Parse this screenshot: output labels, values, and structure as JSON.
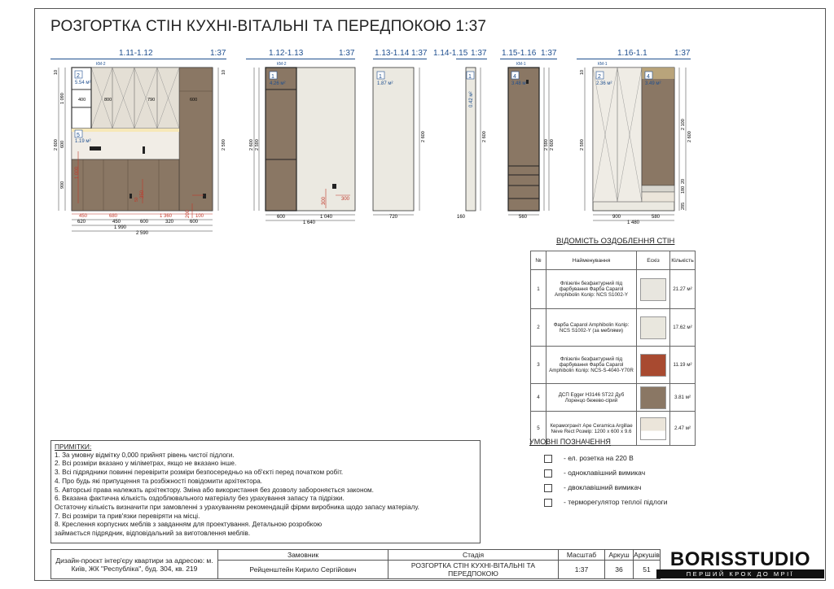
{
  "title": "РОЗГОРТКА СТІН КУХНІ-ВІТАЛЬНІ ТА ПЕРЕДПОКОЮ 1:37",
  "elevations": [
    {
      "label": "1.11-1.12",
      "scale": "1:37"
    },
    {
      "label": "1.12-1.13",
      "scale": "1:37"
    },
    {
      "label": "1.13-1.14",
      "scale": "1:37"
    },
    {
      "label": "1.14-1.15",
      "scale": "1:37"
    },
    {
      "label": "1.15-1.16",
      "scale": "1:37"
    },
    {
      "label": "1.16-1.1",
      "scale": "1:37"
    }
  ],
  "drawing_text": {
    "km2a": "КМ-2",
    "km2b": "КМ-2",
    "km1a": "КМ-1",
    "km1b": "КМ-1",
    "e1_area2": "5.54 м²",
    "e1_area5": "1.19 м²",
    "e2_area1": "4.26 м²",
    "e3_area1": "1.87 м²",
    "e4_area1": "0.42 м²",
    "e5_area4": "3.48 м²",
    "e6_area2": "2.36 м²",
    "e6_area4": "3.49 м²",
    "tag1": "1",
    "tag2": "2",
    "tag3": "3",
    "tag4": "4",
    "tag5": "5",
    "d400": "400",
    "d800": "800",
    "d790": "790",
    "d600": "600",
    "d10": "10",
    "d1090": "1 090",
    "d2600": "2 600",
    "d600v": "600",
    "d900": "900",
    "d2590": "2 590",
    "d450": "450",
    "d680": "680",
    "d1360": "1 360",
    "d200": "200",
    "d100": "100",
    "d620": "620",
    "d450b": "450",
    "d600b": "600",
    "d320": "320",
    "d600c": "600",
    "d1990": "1 990",
    "d2590b": "2 590",
    "d1000": "1 000",
    "d350": "350",
    "d50": "50",
    "e2_600": "600",
    "e2_1040": "1 040",
    "e2_1640": "1 640",
    "e2_300a": "300",
    "e2_300b": "300",
    "e3_720": "720",
    "e4_160": "160",
    "e5_560": "560",
    "e6_900": "900",
    "e6_580": "580",
    "e6_1480": "1 480",
    "e6_2100": "2 100",
    "e6_20": "20",
    "e6_180": "180",
    "e6_285": "285",
    "e6_2590": "2 590",
    "e6_2600": "2 600",
    "e5_2590": "2 590",
    "e5_2600": "2 600"
  },
  "notes": {
    "heading": "ПРИМІТКИ:",
    "lines": [
      "1. За умовну відмітку 0,000 прийнят рівень чистої підлоги.",
      "2. Всі розміри вказано у міліметрах, якщо не вказано інше.",
      "3. Всі підрядники повинні перевірити розміри безпосередньо на об'єкті перед початком робіт.",
      "4. Про будь які припущення та розбіжності повідомити архітектора.",
      "5. Авторські права належать архітектору. Зміна або використання без дозволу забороняється законом.",
      "6. Вказана фактична кількість оздоблювального матеріалу без урахування запасу та підрізки.",
      "Остаточну кількість визначити при замовленні з урахуванням рекомендацій фірми виробника щодо запасу матеріалу.",
      "7. Всі розміри та прив'язки перевіряти на місці.",
      "8. Креслення корпусних меблів з завданням для проектування. Детальною розробкою",
      "займається підрядник, відповідальний за виготовлення меблів."
    ]
  },
  "finishes": {
    "title": "ВІДОМІСТЬ ОЗДОБЛЕННЯ СТІН",
    "headers": {
      "no": "№",
      "name": "Найменування",
      "sketch": "Ескіз",
      "qty": "Кількість"
    },
    "rows": [
      {
        "no": "1",
        "name": "Флізелін безфактурний під фарбування Фарба Caparol Amphibolin Колір: NCS S1002-Y",
        "qty": "21.27 м²",
        "color": "#e8e6df"
      },
      {
        "no": "2",
        "name": "Фарба Caparol Amphibolin Колір: NCS S1002-Y (за меблями)",
        "qty": "17.62 м²",
        "color": "#e9e7de"
      },
      {
        "no": "3",
        "name": "Флізелін безфактурний під фарбування Фарба Caparol Amphibolin Колір: NCS-S-4040-Y70R",
        "qty": "11.19 м²",
        "color": "#a84a30"
      },
      {
        "no": "4",
        "name": "ДСП Egger H3146 ST22 Дуб Лоренцо бежево-сірий",
        "qty": "3.81 м²",
        "color": "#8a7764"
      },
      {
        "no": "5",
        "name": "Керамограніт Ape Ceramica Argillae Neve Rect Розмір: 1200 х 600 х 9.6",
        "qty": "2.47 м²",
        "color": "#ebe5da"
      }
    ]
  },
  "legend": {
    "title": "УМОВНІ ПОЗНАЧЕННЯ",
    "items": [
      "- ел. розетка на 220 В",
      "- одноклавішний вимикач",
      "- двоклавішний вимикач",
      "- терморегулятор теплої підлоги"
    ]
  },
  "stamp": {
    "project": "Дизайн-проєкт інтер'єру квартири за адресою: м. Київ, ЖК \"Республіка\", буд. 304, кв. 219",
    "client_label": "Замовник",
    "client": "Рейценштейн Кирило Сергійович",
    "stage_label": "Стадія",
    "stage": "РОЗГОРТКА СТІН КУХНІ-ВІТАЛЬНІ ТА ПЕРЕДПОКОЮ",
    "scale_label": "Масштаб",
    "scale": "1:37",
    "sheet_label": "Аркуш",
    "sheet": "36",
    "sheets_label": "Аркушів",
    "sheets": "51"
  },
  "brand": {
    "logo": "BORISSTUDIO",
    "slogan": "ПЕРШИЙ КРОК ДО МРІЇ"
  },
  "colors": {
    "wood": "#8a7764",
    "accent_red": "#a84a30",
    "wall": "#ebe9e1",
    "line_blue": "#1f4f8f",
    "dim_red": "#c0392b"
  }
}
